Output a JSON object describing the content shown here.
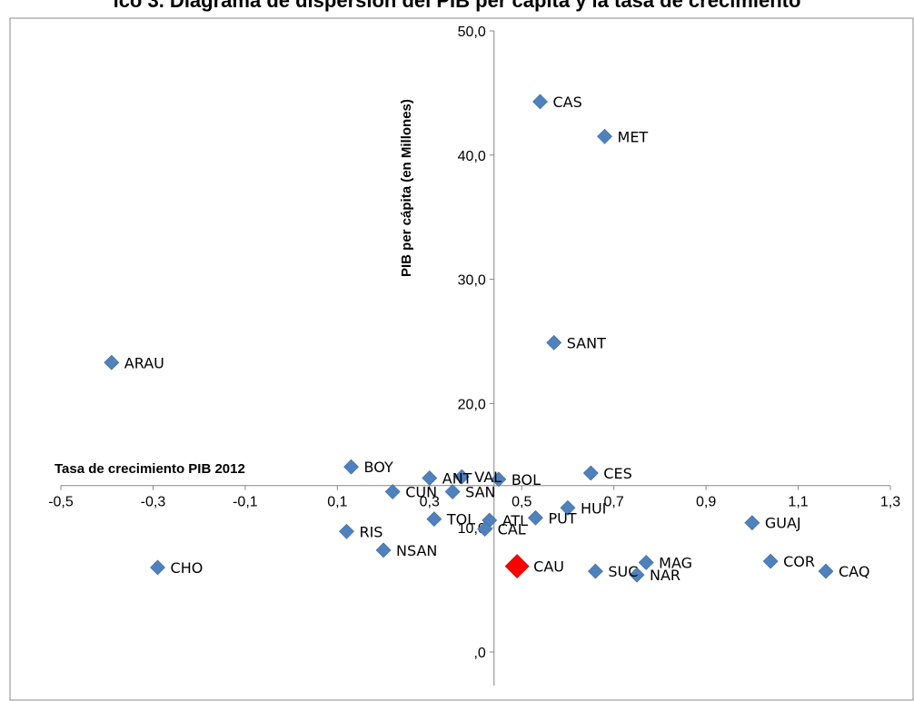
{
  "page": {
    "title": "ico 3. Diagrama de dispersión del PIB per cápita y la tasa de crecimiento"
  },
  "chart_data": {
    "type": "scatter",
    "title": "ico 3. Diagrama de dispersión del PIB per cápita y la tasa de crecimiento",
    "xlabel": "Tasa de crecimiento PIB 2012",
    "ylabel": "PIB per cápita (en Millones)",
    "xlim": [
      -0.5,
      1.3
    ],
    "ylim": [
      0,
      50
    ],
    "x_ticks": [
      "-0,5",
      "-0,3",
      "-0,1",
      "0,1",
      "0,3",
      "0,5",
      "0,7",
      "0,9",
      "1,1",
      "1,3"
    ],
    "y_ticks": [
      ",0",
      "10,0",
      "20,0",
      "30,0",
      "40,0",
      "50,0"
    ],
    "grid": false,
    "colors": {
      "points": "#4f81bd",
      "highlight": "#ff0000"
    },
    "points": [
      {
        "label": "CAS",
        "x": 0.54,
        "y": 44.3
      },
      {
        "label": "MET",
        "x": 0.68,
        "y": 41.5
      },
      {
        "label": "SANT",
        "x": 0.57,
        "y": 24.9
      },
      {
        "label": "ARAU",
        "x": -0.39,
        "y": 23.3
      },
      {
        "label": "BOY",
        "x": 0.13,
        "y": 14.9
      },
      {
        "label": "ANT",
        "x": 0.3,
        "y": 14.0
      },
      {
        "label": "VAL",
        "x": 0.37,
        "y": 14.1
      },
      {
        "label": "BOL",
        "x": 0.45,
        "y": 13.9
      },
      {
        "label": "CES",
        "x": 0.65,
        "y": 14.4
      },
      {
        "label": "CUN",
        "x": 0.22,
        "y": 12.9
      },
      {
        "label": "SAN",
        "x": 0.35,
        "y": 12.9
      },
      {
        "label": "HUI",
        "x": 0.6,
        "y": 11.6
      },
      {
        "label": "TOL",
        "x": 0.31,
        "y": 10.7
      },
      {
        "label": "ATL",
        "x": 0.43,
        "y": 10.6
      },
      {
        "label": "PUT",
        "x": 0.53,
        "y": 10.8
      },
      {
        "label": "CAL",
        "x": 0.42,
        "y": 9.9
      },
      {
        "label": "RIS",
        "x": 0.12,
        "y": 9.7
      },
      {
        "label": "NSAN",
        "x": 0.2,
        "y": 8.2
      },
      {
        "label": "GUAJ",
        "x": 1.0,
        "y": 10.4
      },
      {
        "label": "CHO",
        "x": -0.29,
        "y": 6.8
      },
      {
        "label": "CAU",
        "x": 0.49,
        "y": 6.9,
        "highlight": true
      },
      {
        "label": "SUC",
        "x": 0.66,
        "y": 6.5
      },
      {
        "label": "NAR",
        "x": 0.75,
        "y": 6.2
      },
      {
        "label": "MAG",
        "x": 0.77,
        "y": 7.2
      },
      {
        "label": "COR",
        "x": 1.04,
        "y": 7.3
      },
      {
        "label": "CAQ",
        "x": 1.16,
        "y": 6.5
      }
    ]
  }
}
